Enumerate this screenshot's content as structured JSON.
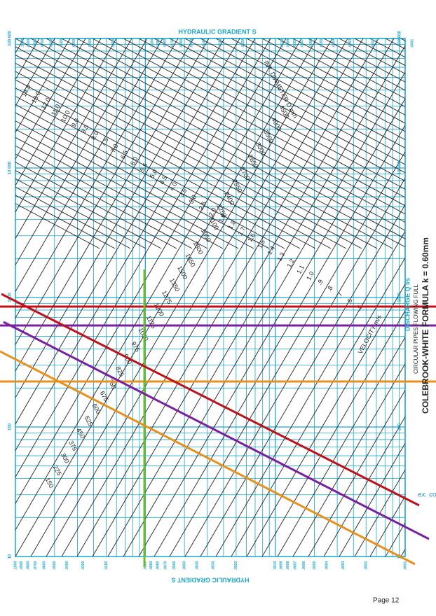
{
  "header": {
    "title": "HYDRAULIC GRADIENT S"
  },
  "footer": {
    "title": "HYDRAULIC GRADIENT S",
    "page": "Page 12"
  },
  "side": {
    "formula": "COLEBROOK-WHITE FORMULA  k  =  0.60mm",
    "subtitle": "CIRCULAR PIPES FLOWING FULL",
    "discharge": "DISCHARGE Q     l/s",
    "velocity": "VELOCITY     m/s",
    "diameter": "INT. DIAMETER D     mm"
  },
  "annotation": "ex. conc. pipe",
  "gradient_labels": [
    ".1000",
    ".0900",
    ".0800",
    ".0700",
    ".0600",
    ".0500",
    ".0400",
    ".0300",
    ".0200",
    ".0100",
    ".0090",
    ".0080",
    ".0070",
    ".0060",
    ".0050",
    ".0040",
    ".0030",
    ".0020",
    ".0010",
    ".0009",
    ".0008",
    ".0007",
    ".0006",
    ".0005",
    ".0004",
    ".0003",
    ".0002",
    ".0001"
  ],
  "discharge_labels": [
    "100 000",
    "10 000",
    "1000",
    "100",
    "10"
  ],
  "diameter_labels": [
    "4500",
    "4000",
    "3500",
    "3000",
    "2850",
    "2700",
    "2550",
    "2400",
    "2250",
    "2100",
    "1950",
    "1800",
    "1650",
    "1500",
    "1350",
    "1275",
    "1200",
    "1125",
    "1050",
    "975",
    "900",
    "825",
    "750",
    "675",
    "600",
    "525",
    "450",
    "375",
    "300",
    "225",
    "150"
  ],
  "velocity_labels": [
    "14.0",
    "13.0",
    "12.0",
    "11.0",
    "10.0",
    "9.0",
    "8.5",
    "8.0",
    "7.5",
    "7.0",
    "6.5",
    "6.0",
    "5.5",
    "5.0",
    "4.5",
    "4.0",
    "3.5",
    "3.0",
    "2.5",
    "2.0",
    "1.9",
    "1.8",
    "1.7",
    "1.6",
    "1.5",
    "1.4",
    "1.3",
    "1.2",
    "1.1",
    "1.0",
    ".9",
    ".8",
    ".7",
    ".6",
    ".5"
  ]
}
